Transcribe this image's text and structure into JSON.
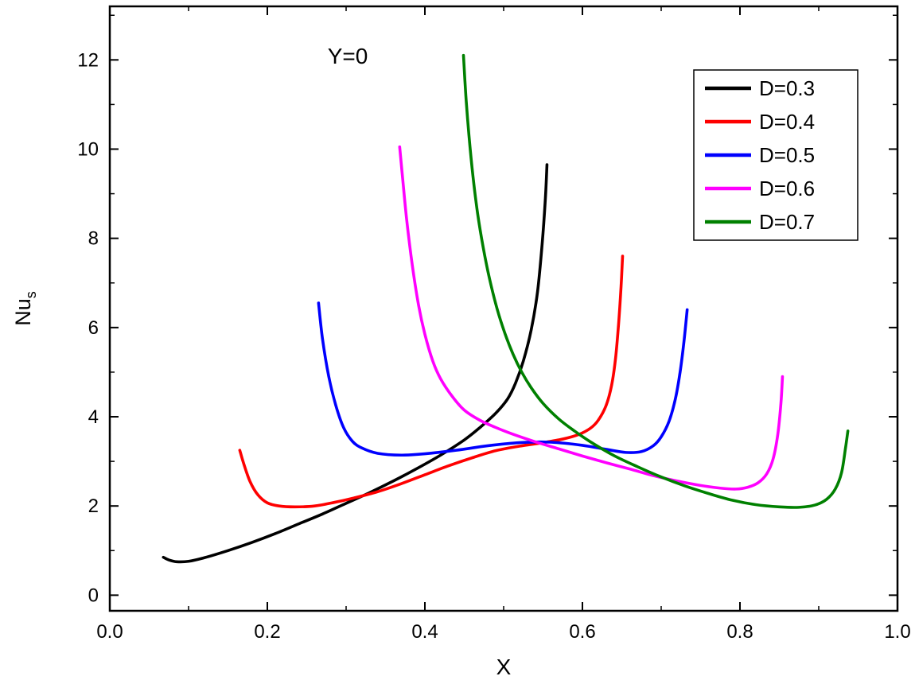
{
  "page": {
    "background": "#ffffff"
  },
  "chart_data": {
    "type": "line",
    "title": "",
    "annotation": "Y=0",
    "xlabel": "X",
    "ylabel": "Nus",
    "ylabel_main": "Nu",
    "ylabel_sub": "s",
    "xlim": [
      0.0,
      1.0
    ],
    "ylim": [
      0,
      13
    ],
    "draw_xlim": [
      0.0,
      1.0
    ],
    "draw_ylim": [
      -0.35,
      13.2
    ],
    "grid": false,
    "legend_position": "top-right",
    "frame_color": "#000000",
    "x_ticks": {
      "values": [
        0.0,
        0.2,
        0.4,
        0.6,
        0.8,
        1.0
      ],
      "labels": [
        "0.0",
        "0.2",
        "0.4",
        "0.6",
        "0.8",
        "1.0"
      ],
      "minor_values": [
        0.1,
        0.3,
        0.5,
        0.7,
        0.9
      ]
    },
    "y_ticks": {
      "values": [
        0,
        2,
        4,
        6,
        8,
        10,
        12
      ],
      "labels": [
        "0",
        "2",
        "4",
        "6",
        "8",
        "10",
        "12"
      ],
      "minor_values": [
        1,
        3,
        5,
        7,
        9,
        11,
        13
      ]
    },
    "series": [
      {
        "name": "D=0.3",
        "color": "#000000",
        "points": [
          [
            0.068,
            0.85
          ],
          [
            0.075,
            0.79
          ],
          [
            0.085,
            0.75
          ],
          [
            0.1,
            0.76
          ],
          [
            0.12,
            0.84
          ],
          [
            0.15,
            1.0
          ],
          [
            0.18,
            1.18
          ],
          [
            0.21,
            1.38
          ],
          [
            0.24,
            1.6
          ],
          [
            0.27,
            1.82
          ],
          [
            0.3,
            2.06
          ],
          [
            0.33,
            2.3
          ],
          [
            0.36,
            2.56
          ],
          [
            0.39,
            2.84
          ],
          [
            0.42,
            3.14
          ],
          [
            0.45,
            3.48
          ],
          [
            0.47,
            3.76
          ],
          [
            0.49,
            4.08
          ],
          [
            0.505,
            4.4
          ],
          [
            0.515,
            4.75
          ],
          [
            0.525,
            5.25
          ],
          [
            0.535,
            5.95
          ],
          [
            0.543,
            6.8
          ],
          [
            0.549,
            7.9
          ],
          [
            0.553,
            8.9
          ],
          [
            0.555,
            9.65
          ]
        ]
      },
      {
        "name": "D=0.4",
        "color": "#fe0000",
        "points": [
          [
            0.165,
            3.25
          ],
          [
            0.17,
            2.95
          ],
          [
            0.178,
            2.55
          ],
          [
            0.188,
            2.25
          ],
          [
            0.2,
            2.07
          ],
          [
            0.215,
            2.0
          ],
          [
            0.235,
            1.98
          ],
          [
            0.26,
            2.0
          ],
          [
            0.285,
            2.08
          ],
          [
            0.31,
            2.18
          ],
          [
            0.34,
            2.32
          ],
          [
            0.37,
            2.5
          ],
          [
            0.4,
            2.7
          ],
          [
            0.43,
            2.9
          ],
          [
            0.46,
            3.08
          ],
          [
            0.49,
            3.24
          ],
          [
            0.52,
            3.34
          ],
          [
            0.55,
            3.42
          ],
          [
            0.575,
            3.5
          ],
          [
            0.595,
            3.6
          ],
          [
            0.61,
            3.74
          ],
          [
            0.62,
            3.92
          ],
          [
            0.63,
            4.25
          ],
          [
            0.637,
            4.7
          ],
          [
            0.642,
            5.3
          ],
          [
            0.646,
            6.1
          ],
          [
            0.649,
            6.9
          ],
          [
            0.651,
            7.6
          ]
        ]
      },
      {
        "name": "D=0.5",
        "color": "#0000fe",
        "points": [
          [
            0.265,
            6.55
          ],
          [
            0.27,
            5.75
          ],
          [
            0.278,
            4.9
          ],
          [
            0.287,
            4.25
          ],
          [
            0.297,
            3.75
          ],
          [
            0.308,
            3.45
          ],
          [
            0.32,
            3.3
          ],
          [
            0.34,
            3.18
          ],
          [
            0.37,
            3.14
          ],
          [
            0.4,
            3.17
          ],
          [
            0.44,
            3.25
          ],
          [
            0.48,
            3.35
          ],
          [
            0.52,
            3.42
          ],
          [
            0.56,
            3.43
          ],
          [
            0.6,
            3.36
          ],
          [
            0.63,
            3.27
          ],
          [
            0.655,
            3.2
          ],
          [
            0.675,
            3.22
          ],
          [
            0.69,
            3.35
          ],
          [
            0.7,
            3.55
          ],
          [
            0.71,
            3.9
          ],
          [
            0.718,
            4.4
          ],
          [
            0.724,
            5.0
          ],
          [
            0.729,
            5.7
          ],
          [
            0.733,
            6.4
          ]
        ]
      },
      {
        "name": "D=0.6",
        "color": "#ff00ff",
        "points": [
          [
            0.368,
            10.05
          ],
          [
            0.372,
            9.3
          ],
          [
            0.377,
            8.4
          ],
          [
            0.384,
            7.4
          ],
          [
            0.392,
            6.5
          ],
          [
            0.4,
            5.85
          ],
          [
            0.41,
            5.25
          ],
          [
            0.42,
            4.85
          ],
          [
            0.435,
            4.45
          ],
          [
            0.45,
            4.15
          ],
          [
            0.47,
            3.92
          ],
          [
            0.49,
            3.76
          ],
          [
            0.51,
            3.62
          ],
          [
            0.54,
            3.44
          ],
          [
            0.57,
            3.28
          ],
          [
            0.6,
            3.12
          ],
          [
            0.63,
            2.97
          ],
          [
            0.66,
            2.83
          ],
          [
            0.69,
            2.68
          ],
          [
            0.72,
            2.56
          ],
          [
            0.75,
            2.46
          ],
          [
            0.775,
            2.4
          ],
          [
            0.795,
            2.38
          ],
          [
            0.81,
            2.42
          ],
          [
            0.823,
            2.52
          ],
          [
            0.834,
            2.72
          ],
          [
            0.842,
            3.05
          ],
          [
            0.848,
            3.6
          ],
          [
            0.852,
            4.3
          ],
          [
            0.854,
            4.9
          ]
        ]
      },
      {
        "name": "D=0.7",
        "color": "#008000",
        "points": [
          [
            0.449,
            12.1
          ],
          [
            0.452,
            11.2
          ],
          [
            0.456,
            10.3
          ],
          [
            0.461,
            9.4
          ],
          [
            0.467,
            8.55
          ],
          [
            0.474,
            7.8
          ],
          [
            0.482,
            7.1
          ],
          [
            0.492,
            6.4
          ],
          [
            0.502,
            5.85
          ],
          [
            0.512,
            5.4
          ],
          [
            0.523,
            5.0
          ],
          [
            0.535,
            4.65
          ],
          [
            0.55,
            4.3
          ],
          [
            0.57,
            3.95
          ],
          [
            0.59,
            3.68
          ],
          [
            0.61,
            3.44
          ],
          [
            0.64,
            3.13
          ],
          [
            0.67,
            2.88
          ],
          [
            0.7,
            2.65
          ],
          [
            0.73,
            2.45
          ],
          [
            0.76,
            2.28
          ],
          [
            0.79,
            2.13
          ],
          [
            0.82,
            2.03
          ],
          [
            0.85,
            1.98
          ],
          [
            0.875,
            1.97
          ],
          [
            0.895,
            2.02
          ],
          [
            0.91,
            2.15
          ],
          [
            0.921,
            2.38
          ],
          [
            0.929,
            2.75
          ],
          [
            0.934,
            3.3
          ],
          [
            0.937,
            3.68
          ]
        ]
      }
    ]
  }
}
